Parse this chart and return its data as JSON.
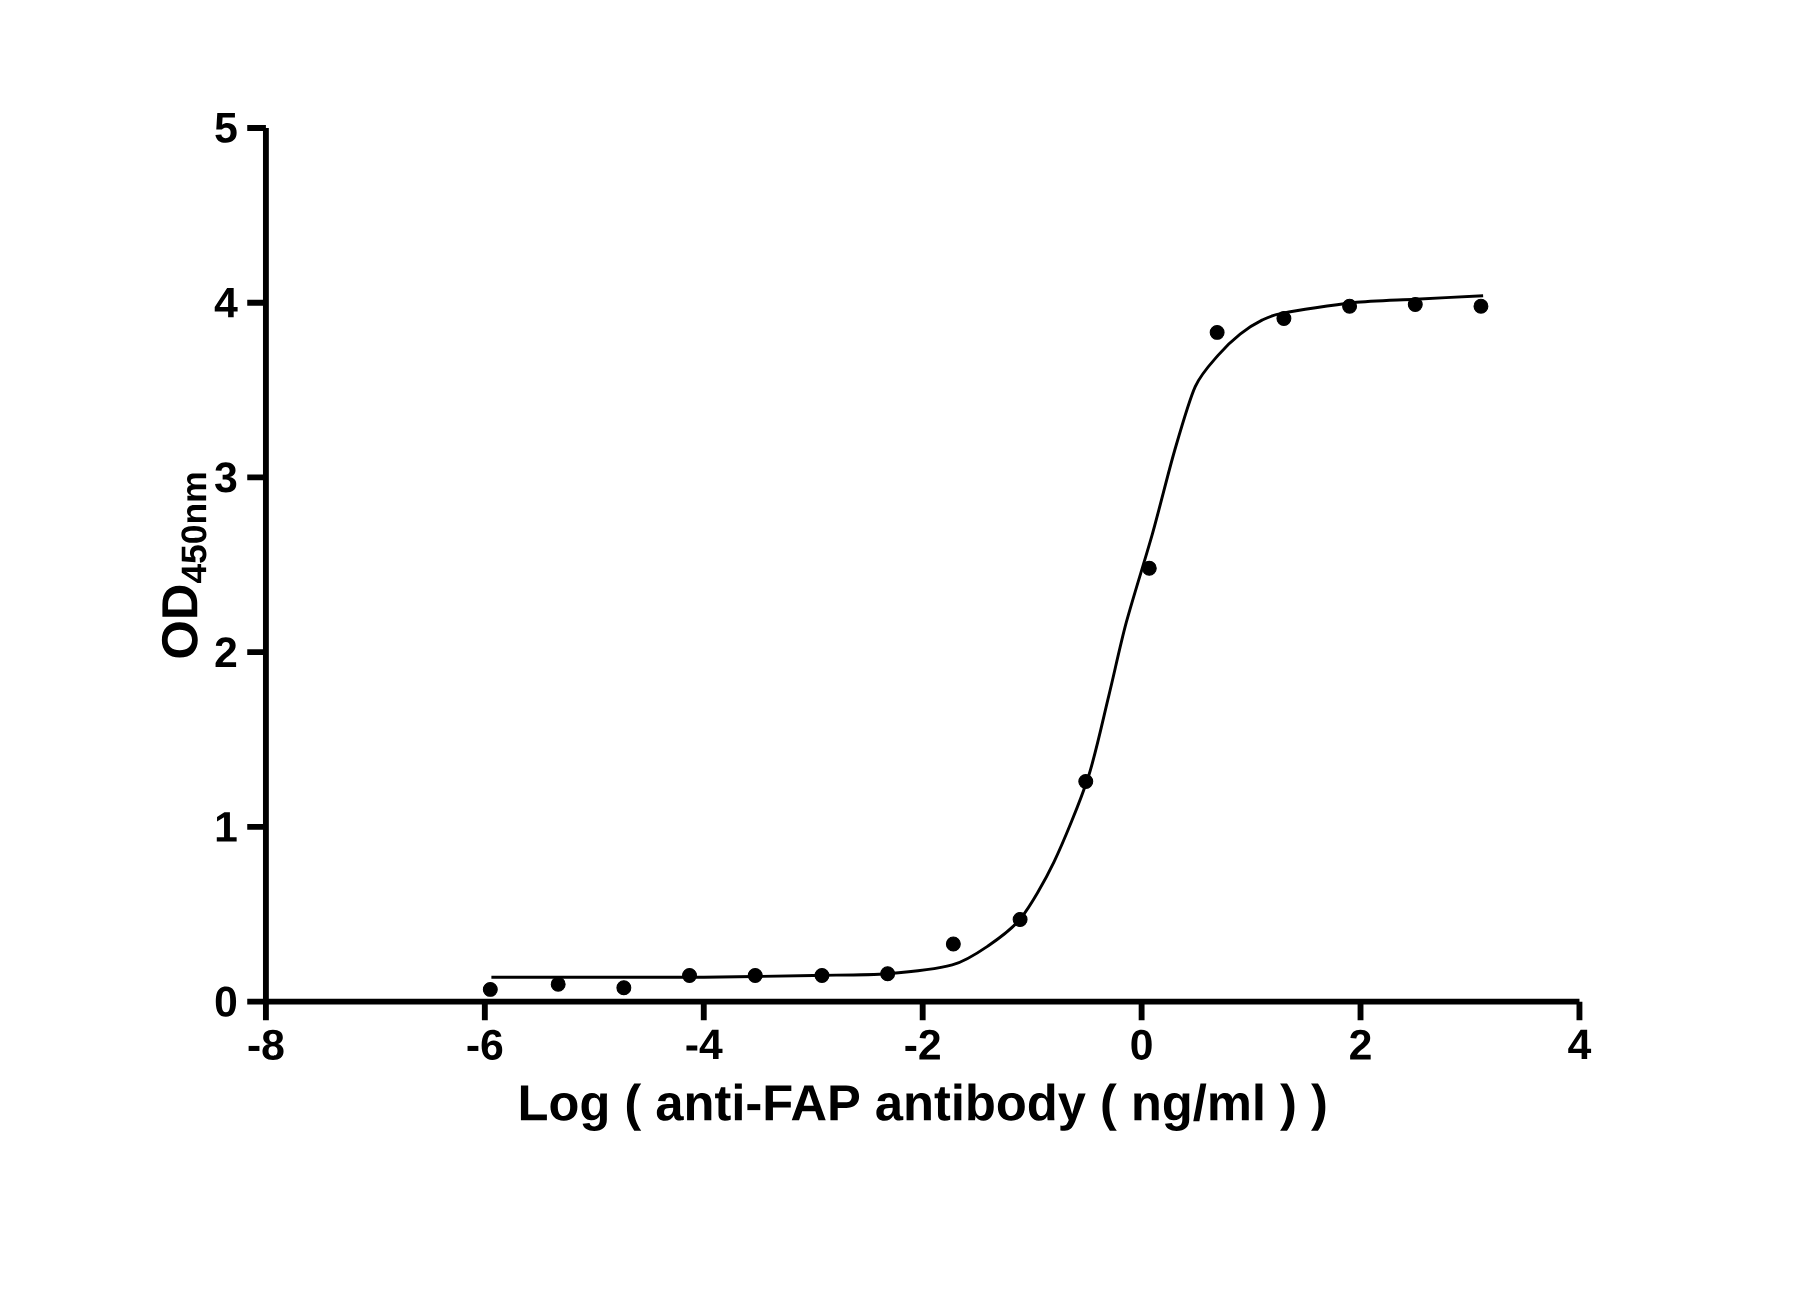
{
  "chart_data": {
    "type": "scatter",
    "xlabel": "Log ( anti-FAP antibody ( ng/ml )   )",
    "ylabel": "OD$_{450nm}$",
    "xlim": [
      -8,
      4
    ],
    "xticks": [
      -8,
      -6,
      -4,
      -2,
      0,
      2,
      4
    ],
    "ylim": [
      0,
      5
    ],
    "yticks": [
      0,
      1,
      2,
      3,
      4,
      5
    ],
    "series": [
      {
        "marker": "circle",
        "color": "#000000",
        "x": [
          -5.95,
          -5.33,
          -4.73,
          -4.13,
          -3.53,
          -2.92,
          -2.32,
          -1.72,
          -1.11,
          -0.51,
          0.07,
          0.69,
          1.3,
          1.9,
          2.5,
          3.1
        ],
        "values": [
          0.07,
          0.1,
          0.08,
          0.15,
          0.15,
          0.15,
          0.16,
          0.33,
          0.47,
          1.26,
          2.48,
          3.83,
          3.91,
          3.98,
          3.99,
          3.98
        ]
      },
      {
        "type": "line",
        "marker": "none",
        "line_style": "solid",
        "color": "#000000",
        "x": [
          -5.94,
          -5,
          -4,
          -3,
          -2.32,
          -1.73,
          -1.4,
          -1.1,
          -0.8,
          -0.49,
          -0.3,
          -0.14,
          0.1,
          0.3,
          0.49,
          0.7,
          0.9,
          1.1,
          1.29,
          1.93,
          2.5,
          3.12
        ],
        "values": [
          0.14,
          0.14,
          0.14,
          0.15,
          0.16,
          0.21,
          0.32,
          0.48,
          0.8,
          1.28,
          1.75,
          2.17,
          2.68,
          3.15,
          3.52,
          3.7,
          3.82,
          3.9,
          3.94,
          4.0,
          4.02,
          4.04
        ]
      }
    ]
  }
}
